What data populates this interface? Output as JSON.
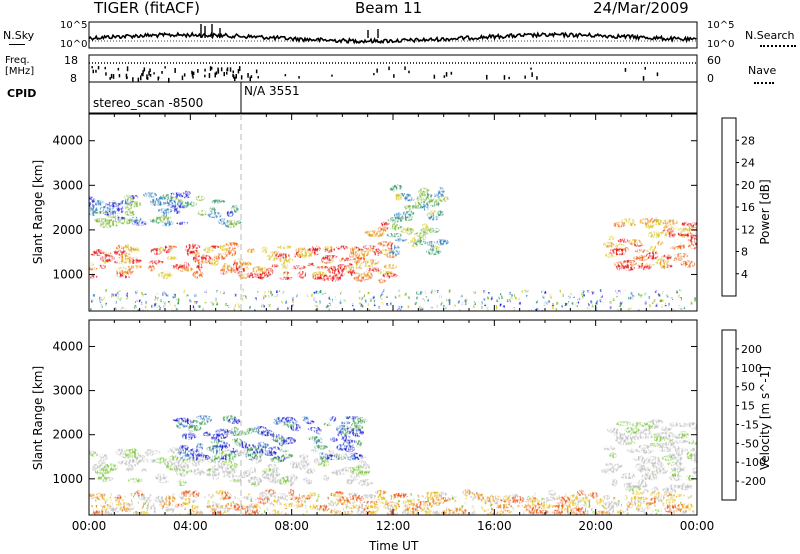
{
  "header": {
    "radar": "TIGER (fitACF)",
    "beam": "Beam 11",
    "date": "24/Mar/2009"
  },
  "noise_panel": {
    "left_label": "N.Sky",
    "right_label": "N.Search",
    "left_ticks": [
      "10^5",
      "10^0"
    ],
    "right_ticks": [
      "10^5",
      "10^0"
    ]
  },
  "freq_panel": {
    "left_label_line1": "Freq.",
    "left_label_line2": "[MHz]",
    "left_ticks": [
      "18",
      "8"
    ],
    "right_label": "Nave",
    "right_ticks": [
      "60",
      "0"
    ]
  },
  "cpid_panel": {
    "label": "CPID",
    "program_1": "stereo_scan -8500",
    "program_2": "N/A 3551",
    "switch_time": "06:00"
  },
  "time_axis": {
    "label": "Time UT",
    "ticks": [
      "00:00",
      "04:00",
      "08:00",
      "12:00",
      "16:00",
      "20:00",
      "00:00"
    ]
  },
  "chart_data": [
    {
      "type": "heatmap",
      "name": "power",
      "ylabel": "Slant Range [km]",
      "xlabel": "Time UT",
      "xlim_hours": [
        0,
        24
      ],
      "ylim_km": [
        180,
        4600
      ],
      "yticks": [
        1000,
        2000,
        3000,
        4000
      ],
      "colorbar": {
        "label": "Power [dB]",
        "range": [
          0,
          32
        ],
        "ticks": [
          "4",
          "8",
          "12",
          "16",
          "20",
          "24",
          "28"
        ],
        "colors": [
          "#1f1fd8",
          "#2e7fbf",
          "#3a9a6a",
          "#7ab832",
          "#d8c820",
          "#e89a18",
          "#ee6010",
          "#e81010"
        ]
      },
      "echo_regions": [
        {
          "t0": 0.0,
          "t1": 11.0,
          "r0": 900,
          "r1": 1650,
          "level": "strong",
          "color": "red"
        },
        {
          "t0": 0.0,
          "t1": 6.0,
          "r0": 2100,
          "r1": 2800,
          "level": "weak",
          "color": "blue-green"
        },
        {
          "t0": 11.0,
          "t1": 12.0,
          "r0": 700,
          "r1": 2200,
          "level": "strong",
          "color": "red"
        },
        {
          "t0": 20.5,
          "t1": 24.0,
          "r0": 1100,
          "r1": 2200,
          "level": "strong",
          "color": "red"
        },
        {
          "t0": 12.0,
          "t1": 14.0,
          "r0": 1400,
          "r1": 3000,
          "level": "moderate",
          "color": "green"
        }
      ]
    },
    {
      "type": "heatmap",
      "name": "velocity",
      "ylabel": "Slant Range [km]",
      "xlabel": "Time UT",
      "xlim_hours": [
        0,
        24
      ],
      "ylim_km": [
        180,
        4600
      ],
      "yticks": [
        1000,
        2000,
        3000,
        4000
      ],
      "colorbar": {
        "label": "Velocity [m s^-1]",
        "range": [
          -250,
          250
        ],
        "ticks": [
          "200",
          "100",
          "50",
          "15",
          "-15",
          "-50",
          "-100",
          "-200"
        ],
        "colors": [
          "#1820d0",
          "#3070c0",
          "#40a050",
          "#80c840",
          "#c0c0c0",
          "#e8c020",
          "#e89020",
          "#e85010",
          "#e01010"
        ]
      },
      "echo_regions": [
        {
          "t0": 0.0,
          "t1": 11.0,
          "r0": 900,
          "r1": 1650,
          "velocity_class": "near-zero",
          "color": "grey"
        },
        {
          "t0": 3.5,
          "t1": 10.8,
          "r0": 1400,
          "r1": 2400,
          "velocity_class": "positive",
          "color": "blue"
        },
        {
          "t0": 0.0,
          "t1": 24.0,
          "r0": 200,
          "r1": 700,
          "velocity_class": "slightly negative",
          "color": "yellow"
        },
        {
          "t0": 20.5,
          "t1": 24.0,
          "r0": 700,
          "r1": 2300,
          "velocity_class": "near-zero",
          "color": "grey"
        }
      ]
    }
  ]
}
